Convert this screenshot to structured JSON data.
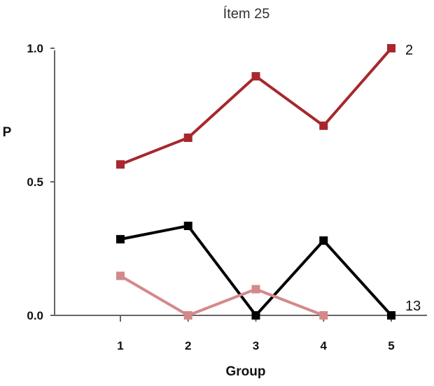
{
  "chart_data": {
    "type": "line",
    "title": "Ítem 25",
    "xlabel": "Group",
    "ylabel": "P",
    "categories": [
      "1",
      "2",
      "3",
      "4",
      "5"
    ],
    "y_ticks": [
      "0.0",
      "0.5",
      "1.0"
    ],
    "ylim": [
      0,
      1
    ],
    "grid": false,
    "legend": "none",
    "series": [
      {
        "values": [
          0.565,
          0.665,
          0.895,
          0.71,
          1.0
        ],
        "color": "#a8272d",
        "marker": "square",
        "end_label": "2"
      },
      {
        "values": [
          0.285,
          0.335,
          0.0,
          0.28,
          0.0
        ],
        "color": "#000000",
        "marker": "square",
        "end_label": "13"
      },
      {
        "values": [
          0.148,
          0.0,
          0.098,
          0.0,
          null
        ],
        "color": "#d4888a",
        "marker": "square",
        "end_label": ""
      }
    ]
  }
}
